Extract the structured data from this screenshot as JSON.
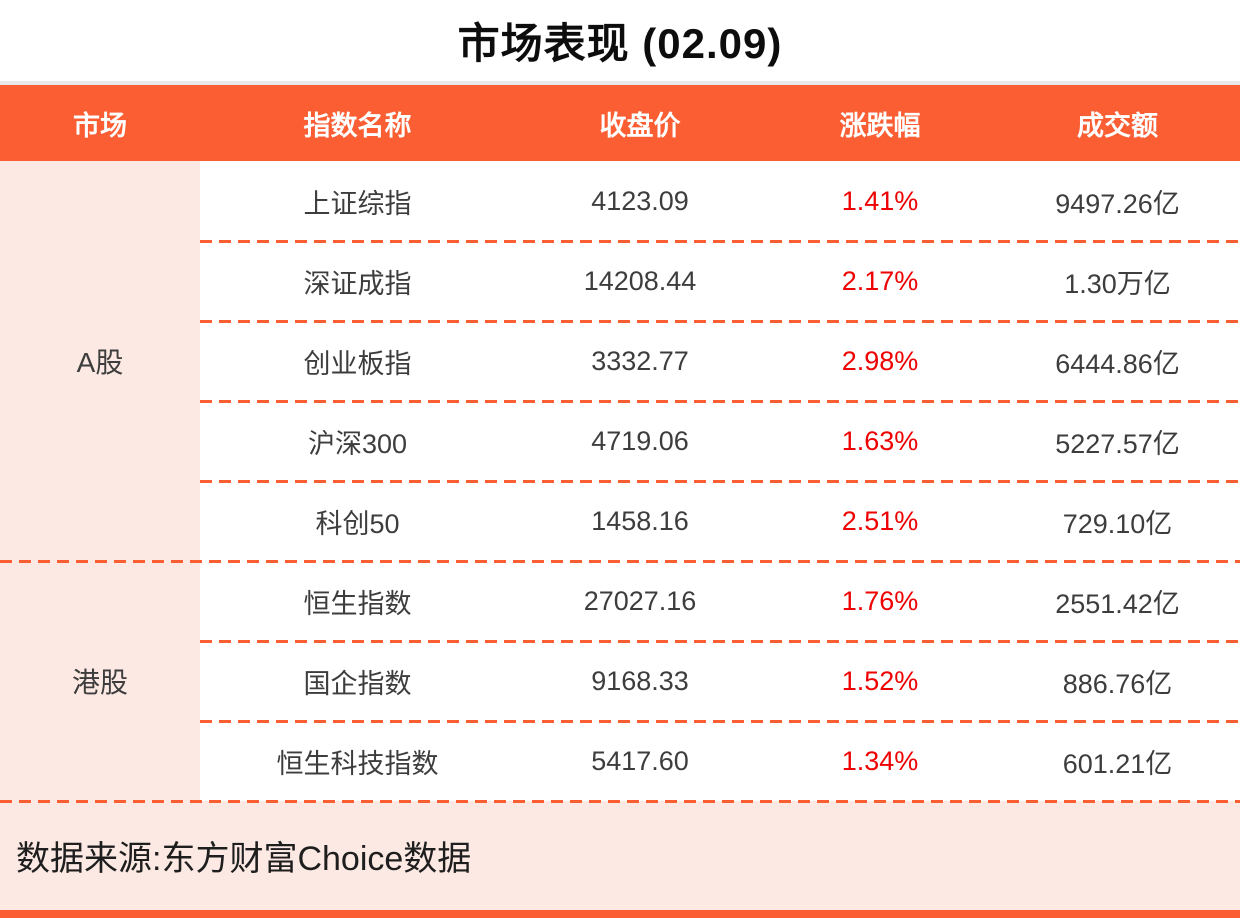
{
  "title": "市场表现 (02.09)",
  "table": {
    "columns": [
      "市场",
      "指数名称",
      "收盘价",
      "涨跌幅",
      "成交额"
    ],
    "groups": [
      {
        "market": "A股",
        "rows": [
          {
            "name": "上证综指",
            "close": "4123.09",
            "change": "1.41%",
            "turnover": "9497.26亿"
          },
          {
            "name": "深证成指",
            "close": "14208.44",
            "change": "2.17%",
            "turnover": "1.30万亿"
          },
          {
            "name": "创业板指",
            "close": "3332.77",
            "change": "2.98%",
            "turnover": "6444.86亿"
          },
          {
            "name": "沪深300",
            "close": "4719.06",
            "change": "1.63%",
            "turnover": "5227.57亿"
          },
          {
            "name": "科创50",
            "close": "1458.16",
            "change": "2.51%",
            "turnover": "729.10亿"
          }
        ]
      },
      {
        "market": "港股",
        "rows": [
          {
            "name": "恒生指数",
            "close": "27027.16",
            "change": "1.76%",
            "turnover": "2551.42亿"
          },
          {
            "name": "国企指数",
            "close": "9168.33",
            "change": "1.52%",
            "turnover": "886.76亿"
          },
          {
            "name": "恒生科技指数",
            "close": "5417.60",
            "change": "1.34%",
            "turnover": "601.21亿"
          }
        ]
      }
    ]
  },
  "footer": {
    "source": "数据来源:东方财富Choice数据"
  },
  "colors": {
    "accent": "#FB5E33",
    "panel_pink": "#FCE9E3",
    "up_red": "#EE0202"
  },
  "chart_data": {
    "type": "table",
    "title": "市场表现 (02.09)",
    "columns": [
      "市场",
      "指数名称",
      "收盘价",
      "涨跌幅",
      "成交额"
    ],
    "rows": [
      [
        "A股",
        "上证综指",
        "4123.09",
        "1.41%",
        "9497.26亿"
      ],
      [
        "A股",
        "深证成指",
        "14208.44",
        "2.17%",
        "1.30万亿"
      ],
      [
        "A股",
        "创业板指",
        "3332.77",
        "2.98%",
        "6444.86亿"
      ],
      [
        "A股",
        "沪深300",
        "4719.06",
        "1.63%",
        "5227.57亿"
      ],
      [
        "A股",
        "科创50",
        "1458.16",
        "2.51%",
        "729.10亿"
      ],
      [
        "港股",
        "恒生指数",
        "27027.16",
        "1.76%",
        "2551.42亿"
      ],
      [
        "港股",
        "国企指数",
        "9168.33",
        "1.52%",
        "886.76亿"
      ],
      [
        "港股",
        "恒生科技指数",
        "5417.60",
        "1.34%",
        "601.21亿"
      ]
    ],
    "notes": "涨跌幅 values rendered in red (up). Source line: 数据来源:东方财富Choice数据",
    "legend_position": "none",
    "grid": "dashed horizontal separators"
  }
}
